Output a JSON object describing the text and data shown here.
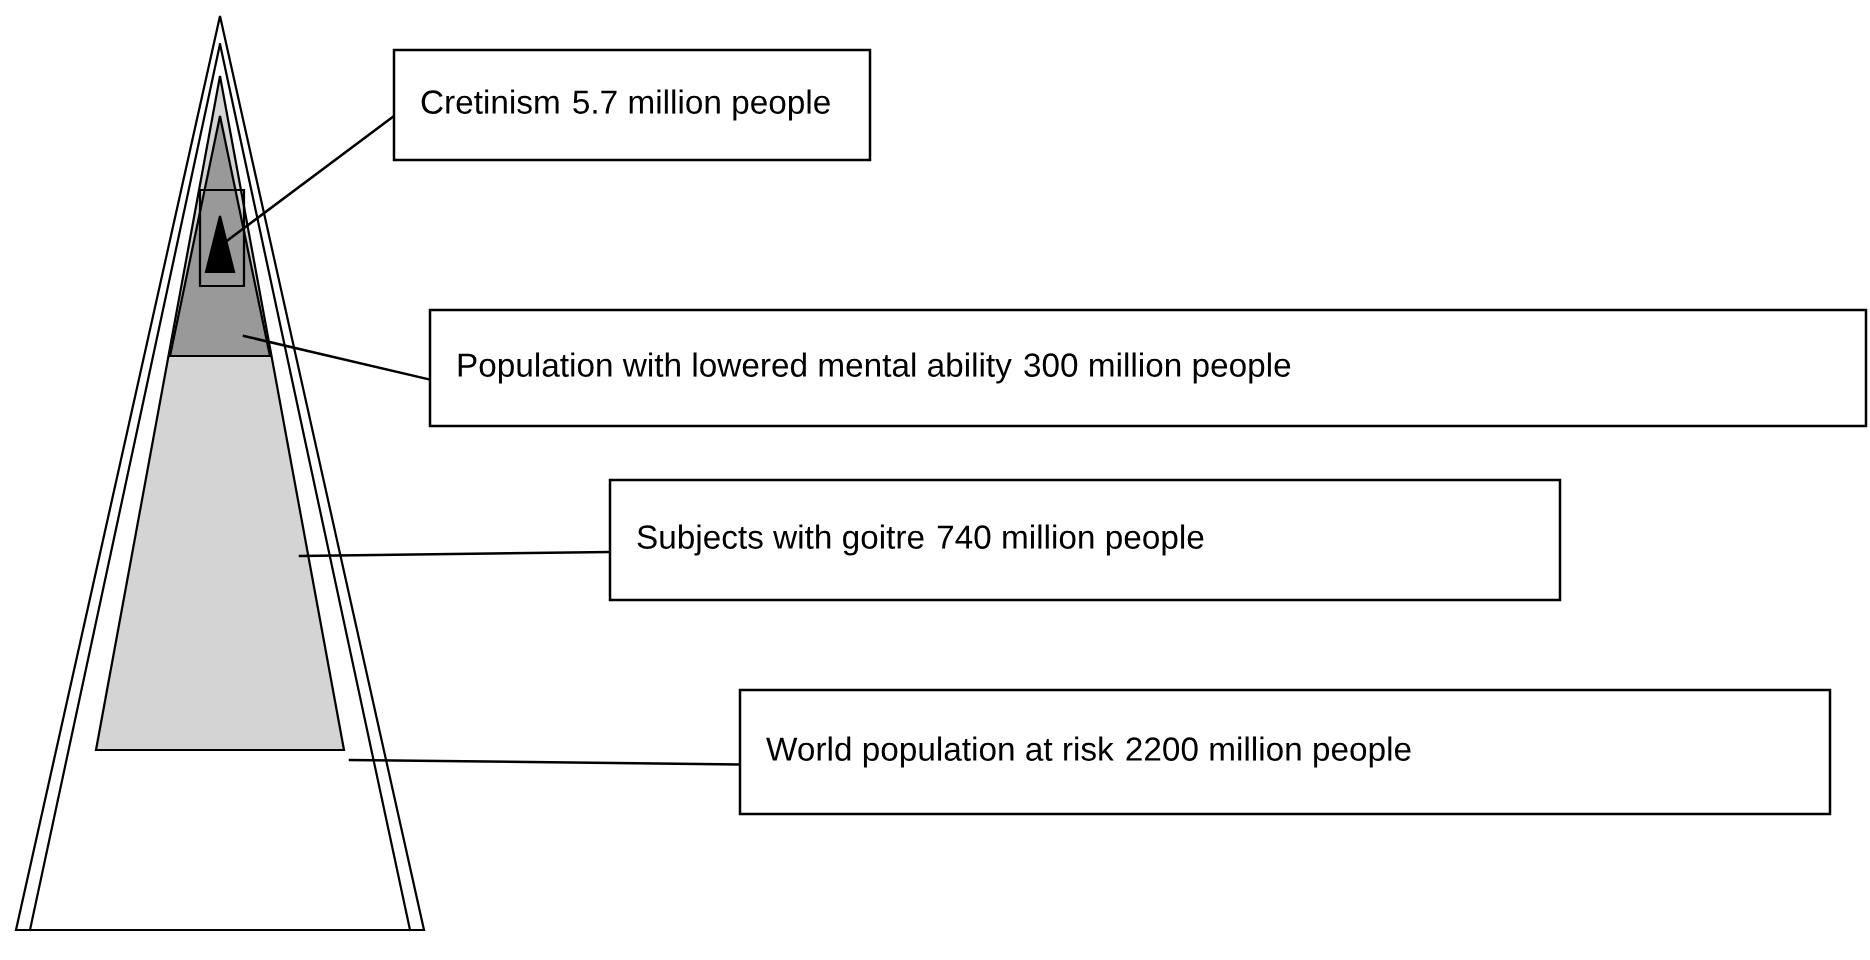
{
  "chart_data": {
    "type": "other",
    "categories": [
      "Cretinism",
      "Population with lowered mental ability",
      "Subjects with goitre",
      "World population at risk"
    ],
    "values": [
      5.7,
      300,
      740,
      2200
    ],
    "value_labels": [
      "5.7 million people",
      "300 million people",
      "740 million people",
      "2200 million people"
    ]
  }
}
